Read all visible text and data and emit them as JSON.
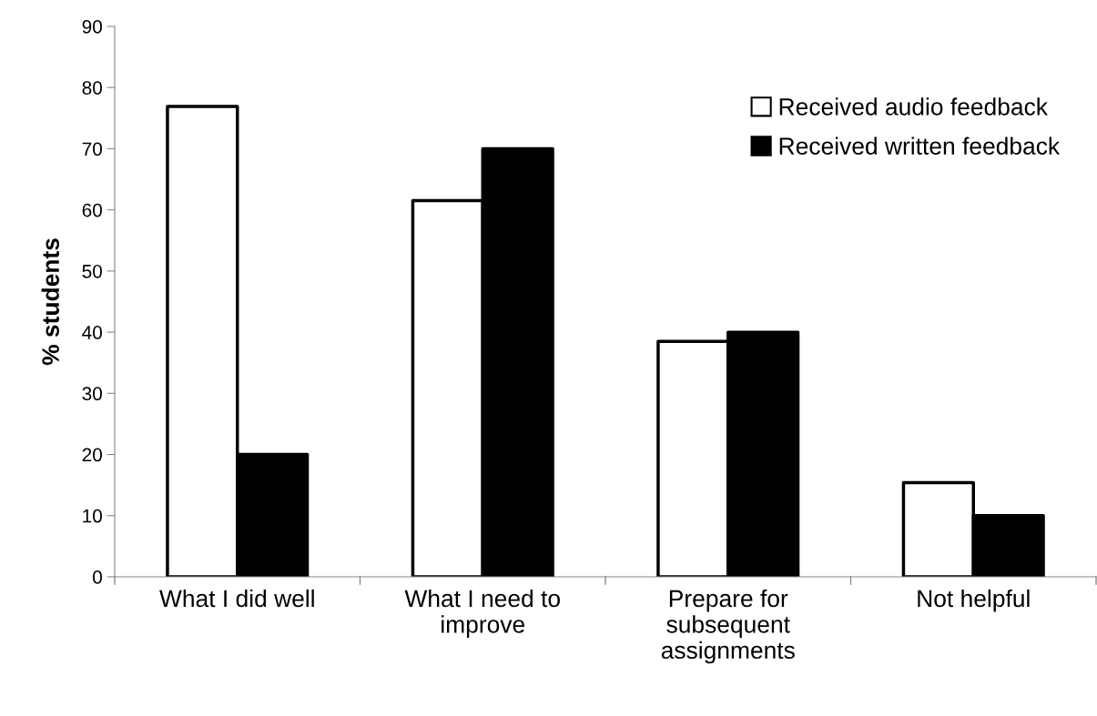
{
  "chart_data": {
    "type": "bar",
    "ylabel": "% students",
    "categories": [
      "What I did well",
      "What I need to\nimprove",
      "Prepare for\nsubsequent\nassignments",
      "Not helpful"
    ],
    "series": [
      {
        "name": "Received audio feedback",
        "color": "#ffffff",
        "values": [
          76.9,
          61.5,
          38.5,
          15.4
        ]
      },
      {
        "name": "Received written feedback",
        "color": "#000000",
        "values": [
          20,
          70,
          40,
          10
        ]
      }
    ],
    "ylim": [
      0,
      90
    ],
    "yticks": [
      0,
      10,
      20,
      30,
      40,
      50,
      60,
      70,
      80,
      90
    ],
    "grid": false,
    "legend": "top right"
  }
}
